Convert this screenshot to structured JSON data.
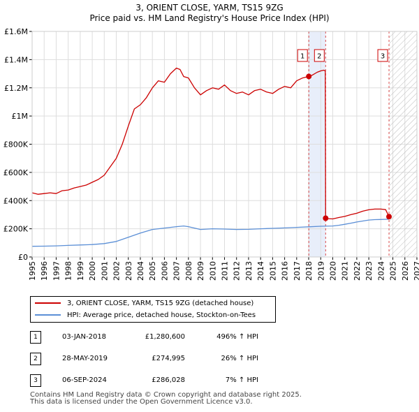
{
  "header": {
    "title": "3, ORIENT CLOSE, YARM, TS15 9ZG",
    "subtitle": "Price paid vs. HM Land Registry's House Price Index (HPI)"
  },
  "colors": {
    "property_line": "#cc0000",
    "hpi_line": "#5b8fd6",
    "grid": "#dddddd",
    "marker_line": "#cc0000",
    "shade": "#e8eefa"
  },
  "chart_data": {
    "type": "line",
    "title": "3, ORIENT CLOSE, YARM, TS15 9ZG",
    "subtitle": "Price paid vs. HM Land Registry's House Price Index (HPI)",
    "xlim": [
      1995,
      2027
    ],
    "ylim": [
      0,
      1600000
    ],
    "y_ticks": [
      0,
      200000,
      400000,
      600000,
      800000,
      1000000,
      1200000,
      1400000,
      1600000
    ],
    "y_tick_labels": [
      "£0",
      "£200K",
      "£400K",
      "£600K",
      "£800K",
      "£1M",
      "£1.2M",
      "£1.4M",
      "£1.6M"
    ],
    "x_ticks": [
      1995,
      1996,
      1997,
      1998,
      1999,
      2000,
      2001,
      2002,
      2003,
      2004,
      2005,
      2006,
      2007,
      2008,
      2009,
      2010,
      2011,
      2012,
      2013,
      2014,
      2015,
      2016,
      2017,
      2018,
      2019,
      2020,
      2021,
      2022,
      2023,
      2024,
      2025,
      2026,
      2027
    ],
    "x_tick_labels": [
      "1995",
      "1996",
      "1997",
      "1998",
      "1999",
      "2000",
      "2001",
      "2002",
      "2003",
      "2004",
      "2005",
      "2006",
      "2007",
      "2008",
      "2009",
      "2010",
      "2011",
      "2012",
      "2013",
      "2014",
      "2015",
      "2016",
      "2017",
      "2018",
      "2019",
      "2020",
      "2021",
      "2022",
      "2023",
      "2024",
      "2025",
      "2026",
      "2027"
    ],
    "grid": true,
    "shaded_span": [
      2018.01,
      2019.41
    ],
    "hatched_from": 2024.68,
    "series": [
      {
        "name": "3, ORIENT CLOSE, YARM, TS15 9ZG (detached house)",
        "color": "#cc0000",
        "x": [
          1995.0,
          1995.5,
          1996.0,
          1996.5,
          1997.0,
          1997.5,
          1998.0,
          1998.5,
          1999.0,
          1999.5,
          2000.0,
          2000.5,
          2001.0,
          2001.5,
          2002.0,
          2002.5,
          2003.0,
          2003.5,
          2004.0,
          2004.5,
          2005.0,
          2005.5,
          2006.0,
          2006.5,
          2007.0,
          2007.3,
          2007.6,
          2008.0,
          2008.5,
          2009.0,
          2009.5,
          2010.0,
          2010.5,
          2011.0,
          2011.5,
          2012.0,
          2012.5,
          2013.0,
          2013.5,
          2014.0,
          2014.5,
          2015.0,
          2015.5,
          2016.0,
          2016.5,
          2017.0,
          2017.5,
          2018.01,
          2018.3,
          2018.7,
          2019.0,
          2019.25,
          2019.38,
          2019.41,
          2019.6,
          2020.0,
          2020.5,
          2021.0,
          2021.5,
          2022.0,
          2022.5,
          2023.0,
          2023.5,
          2024.0,
          2024.4,
          2024.68
        ],
        "y": [
          455000,
          445000,
          450000,
          455000,
          450000,
          470000,
          475000,
          490000,
          500000,
          510000,
          530000,
          550000,
          580000,
          640000,
          700000,
          800000,
          930000,
          1050000,
          1080000,
          1130000,
          1200000,
          1250000,
          1240000,
          1300000,
          1340000,
          1330000,
          1280000,
          1270000,
          1200000,
          1150000,
          1180000,
          1200000,
          1190000,
          1220000,
          1180000,
          1160000,
          1170000,
          1150000,
          1180000,
          1190000,
          1170000,
          1160000,
          1190000,
          1210000,
          1200000,
          1250000,
          1270000,
          1280600,
          1290000,
          1310000,
          1320000,
          1325000,
          1320000,
          274995,
          272000,
          270000,
          280000,
          288000,
          300000,
          310000,
          325000,
          335000,
          340000,
          340000,
          336000,
          286028
        ]
      },
      {
        "name": "HPI: Average price, detached house, Stockton-on-Tees",
        "color": "#5b8fd6",
        "x": [
          1995.0,
          1996.0,
          1997.0,
          1998.0,
          1999.0,
          2000.0,
          2001.0,
          2002.0,
          2003.0,
          2004.0,
          2005.0,
          2006.0,
          2007.0,
          2007.6,
          2008.0,
          2008.5,
          2009.0,
          2010.0,
          2011.0,
          2012.0,
          2013.0,
          2014.0,
          2015.0,
          2016.0,
          2017.0,
          2018.0,
          2019.0,
          2020.0,
          2020.5,
          2021.0,
          2021.5,
          2022.0,
          2022.5,
          2023.0,
          2023.5,
          2024.0,
          2024.68
        ],
        "y": [
          76000,
          77000,
          79000,
          82000,
          85000,
          88000,
          95000,
          110000,
          140000,
          170000,
          195000,
          205000,
          215000,
          220000,
          215000,
          205000,
          195000,
          200000,
          198000,
          195000,
          196000,
          200000,
          203000,
          206000,
          210000,
          214000,
          218000,
          220000,
          225000,
          232000,
          240000,
          248000,
          255000,
          262000,
          265000,
          266000,
          268000
        ]
      }
    ],
    "transactions": [
      {
        "label": "1",
        "x": 2018.01,
        "y": 1280600
      },
      {
        "label": "2",
        "x": 2019.41,
        "y": 274995
      },
      {
        "label": "3",
        "x": 2024.68,
        "y": 286028
      }
    ]
  },
  "legend": {
    "entries": [
      {
        "label": "3, ORIENT CLOSE, YARM, TS15 9ZG (detached house)"
      },
      {
        "label": "HPI: Average price, detached house, Stockton-on-Tees"
      }
    ]
  },
  "table": {
    "rows": [
      {
        "num": "1",
        "date": "03-JAN-2018",
        "price": "£1,280,600",
        "hpi": "496% ↑ HPI"
      },
      {
        "num": "2",
        "date": "28-MAY-2019",
        "price": "£274,995",
        "hpi": "26% ↑ HPI"
      },
      {
        "num": "3",
        "date": "06-SEP-2024",
        "price": "£286,028",
        "hpi": "7% ↑ HPI"
      }
    ]
  },
  "footer": {
    "line1": "Contains HM Land Registry data © Crown copyright and database right 2025.",
    "line2": "This data is licensed under the Open Government Licence v3.0."
  }
}
